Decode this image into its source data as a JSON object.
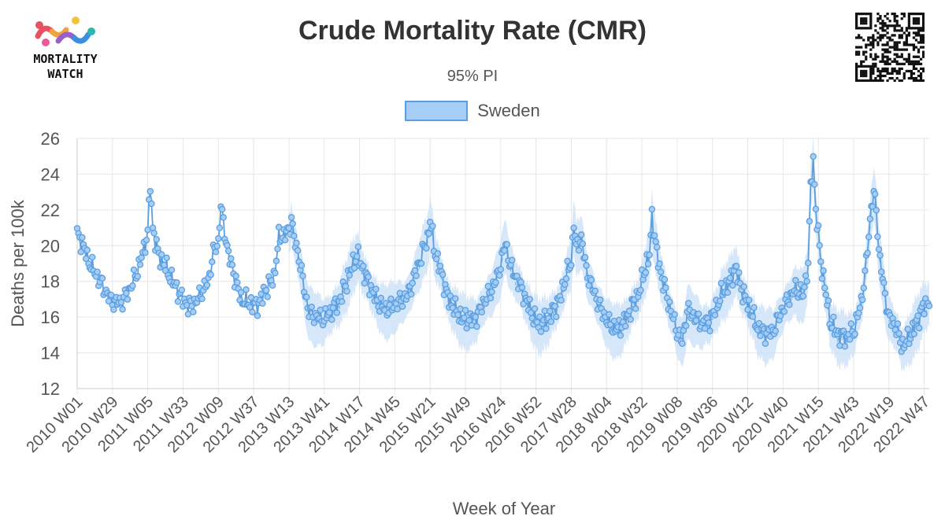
{
  "logo": {
    "line1": "MORTALITY",
    "line2": "WATCH"
  },
  "chart_data": {
    "type": "line",
    "title": "Crude Mortality Rate (CMR)",
    "subtitle": "95% PI",
    "xlabel": "Week of Year",
    "ylabel": "Deaths per 100k",
    "ylim": [
      12,
      26
    ],
    "yticks": [
      12,
      14,
      16,
      18,
      20,
      22,
      24,
      26
    ],
    "grid": true,
    "legend_position": "top-center",
    "x_tick_labels": [
      "2010 W01",
      "2010 W29",
      "2011 W05",
      "2011 W33",
      "2012 W09",
      "2012 W37",
      "2013 W13",
      "2013 W41",
      "2014 W17",
      "2014 W45",
      "2015 W21",
      "2015 W49",
      "2016 W24",
      "2016 W52",
      "2017 W28",
      "2018 W04",
      "2018 W32",
      "2019 W08",
      "2019 W36",
      "2020 W12",
      "2020 W40",
      "2021 W15",
      "2021 W43",
      "2022 W19",
      "2022 W47"
    ],
    "tick_every_weeks": 28,
    "total_weeks": 677,
    "pi_start_week": 168,
    "colors": {
      "line": "#5b9fe0",
      "point_fill": "#a6cdf5",
      "band": "#cfe3f8",
      "grid": "#e6e6e6"
    },
    "series": [
      {
        "name": "Sweden",
        "anchors": [
          [
            0,
            20.6
          ],
          [
            4,
            20.2
          ],
          [
            8,
            19.3
          ],
          [
            14,
            18.5
          ],
          [
            20,
            17.8
          ],
          [
            26,
            17.0
          ],
          [
            30,
            16.8
          ],
          [
            36,
            16.9
          ],
          [
            42,
            17.6
          ],
          [
            48,
            18.6
          ],
          [
            53,
            19.8
          ],
          [
            56,
            20.8
          ],
          [
            58,
            23.4
          ],
          [
            60,
            21.0
          ],
          [
            64,
            19.6
          ],
          [
            70,
            18.8
          ],
          [
            76,
            18.0
          ],
          [
            82,
            17.2
          ],
          [
            88,
            16.6
          ],
          [
            94,
            16.8
          ],
          [
            98,
            17.3
          ],
          [
            104,
            18.0
          ],
          [
            108,
            19.6
          ],
          [
            112,
            20.2
          ],
          [
            114,
            22.3
          ],
          [
            116,
            21.2
          ],
          [
            120,
            19.5
          ],
          [
            126,
            18.0
          ],
          [
            130,
            17.0
          ],
          [
            136,
            16.8
          ],
          [
            142,
            16.6
          ],
          [
            146,
            17.0
          ],
          [
            150,
            17.6
          ],
          [
            156,
            18.2
          ],
          [
            160,
            20.4
          ],
          [
            166,
            20.7
          ],
          [
            168,
            20.8
          ],
          [
            170,
            21.6
          ],
          [
            172,
            20.4
          ],
          [
            176,
            19.4
          ],
          [
            180,
            17.6
          ],
          [
            184,
            16.3
          ],
          [
            190,
            16.0
          ],
          [
            196,
            15.9
          ],
          [
            202,
            16.4
          ],
          [
            208,
            16.9
          ],
          [
            214,
            18.0
          ],
          [
            218,
            18.8
          ],
          [
            222,
            19.5
          ],
          [
            226,
            18.8
          ],
          [
            232,
            17.8
          ],
          [
            238,
            16.9
          ],
          [
            244,
            16.4
          ],
          [
            250,
            16.6
          ],
          [
            256,
            16.9
          ],
          [
            262,
            17.2
          ],
          [
            268,
            18.4
          ],
          [
            274,
            19.6
          ],
          [
            278,
            20.4
          ],
          [
            280,
            21.4
          ],
          [
            284,
            19.6
          ],
          [
            290,
            18.2
          ],
          [
            294,
            17.1
          ],
          [
            300,
            16.4
          ],
          [
            306,
            15.9
          ],
          [
            312,
            15.8
          ],
          [
            318,
            16.1
          ],
          [
            322,
            16.8
          ],
          [
            328,
            17.4
          ],
          [
            334,
            18.4
          ],
          [
            338,
            19.6
          ],
          [
            340,
            20.1
          ],
          [
            344,
            18.8
          ],
          [
            350,
            18.0
          ],
          [
            356,
            17.0
          ],
          [
            362,
            16.0
          ],
          [
            366,
            15.6
          ],
          [
            372,
            15.8
          ],
          [
            378,
            16.4
          ],
          [
            384,
            17.2
          ],
          [
            388,
            18.4
          ],
          [
            392,
            19.0
          ],
          [
            394,
            21.4
          ],
          [
            396,
            19.8
          ],
          [
            400,
            20.5
          ],
          [
            404,
            18.6
          ],
          [
            410,
            17.4
          ],
          [
            416,
            16.4
          ],
          [
            422,
            15.6
          ],
          [
            428,
            15.3
          ],
          [
            434,
            15.7
          ],
          [
            440,
            16.6
          ],
          [
            446,
            17.4
          ],
          [
            450,
            18.6
          ],
          [
            454,
            19.4
          ],
          [
            456,
            21.7
          ],
          [
            460,
            19.5
          ],
          [
            464,
            18.2
          ],
          [
            470,
            16.6
          ],
          [
            476,
            15.2
          ],
          [
            480,
            14.6
          ],
          [
            484,
            16.4
          ],
          [
            490,
            16.0
          ],
          [
            496,
            15.6
          ],
          [
            502,
            15.8
          ],
          [
            506,
            16.4
          ],
          [
            512,
            17.4
          ],
          [
            518,
            18.0
          ],
          [
            522,
            18.8
          ],
          [
            528,
            17.4
          ],
          [
            534,
            16.4
          ],
          [
            540,
            15.4
          ],
          [
            546,
            15.1
          ],
          [
            552,
            15.2
          ],
          [
            558,
            16.2
          ],
          [
            564,
            17.0
          ],
          [
            570,
            17.6
          ],
          [
            576,
            17.2
          ],
          [
            580,
            19.0
          ],
          [
            582,
            23.2
          ],
          [
            584,
            24.9
          ],
          [
            586,
            22.0
          ],
          [
            590,
            19.2
          ],
          [
            594,
            17.2
          ],
          [
            598,
            15.6
          ],
          [
            604,
            15.0
          ],
          [
            610,
            14.9
          ],
          [
            616,
            15.2
          ],
          [
            622,
            16.8
          ],
          [
            626,
            19.0
          ],
          [
            628,
            20.6
          ],
          [
            630,
            22.2
          ],
          [
            632,
            22.9
          ],
          [
            634,
            22.0
          ],
          [
            636,
            19.8
          ],
          [
            640,
            17.6
          ],
          [
            644,
            16.0
          ],
          [
            650,
            15.4
          ],
          [
            654,
            14.4
          ],
          [
            658,
            14.6
          ],
          [
            664,
            15.4
          ],
          [
            670,
            16.4
          ],
          [
            676,
            17.0
          ]
        ]
      }
    ]
  }
}
